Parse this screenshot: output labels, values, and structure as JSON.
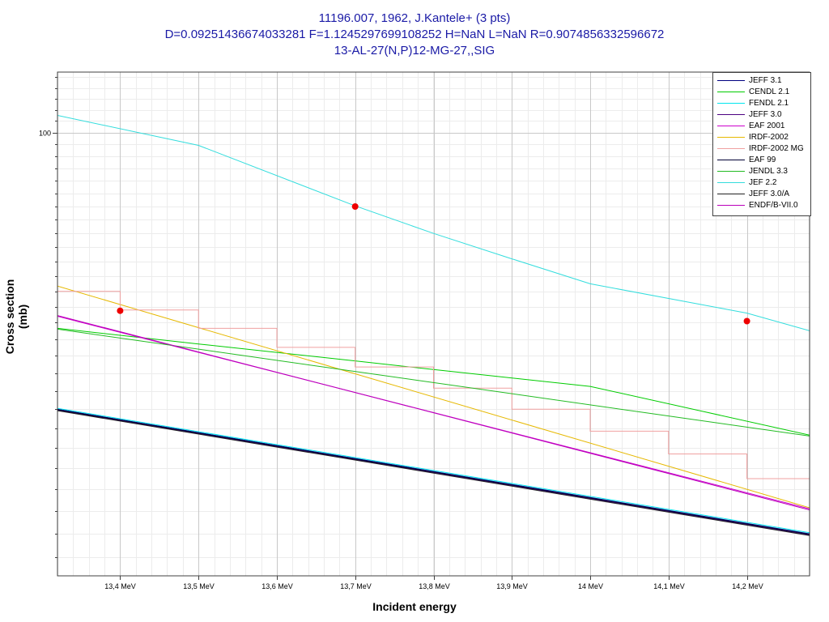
{
  "title": {
    "line1": "11196.007, 1962, J.Kantele+ (3 pts)",
    "line2": "D=0.09251436674033281 F=1.1245297699108252 H=NaN L=NaN R=0.9074856332596672",
    "line3": "13-AL-27(N,P)12-MG-27,,SIG"
  },
  "chart_data": {
    "type": "line",
    "xlabel": "Incident energy",
    "ylabel": "Cross section (mb)",
    "x_range": [
      13.32,
      14.28
    ],
    "y_range": [
      46.5,
      111
    ],
    "y_scale": "log",
    "x_ticks": [
      {
        "value": 13.4,
        "label": "13,4 MeV"
      },
      {
        "value": 13.5,
        "label": "13,5 MeV"
      },
      {
        "value": 13.6,
        "label": "13,6 MeV"
      },
      {
        "value": 13.7,
        "label": "13,7 MeV"
      },
      {
        "value": 13.8,
        "label": "13,8 MeV"
      },
      {
        "value": 13.9,
        "label": "13,9 MeV"
      },
      {
        "value": 14.0,
        "label": "14 MeV"
      },
      {
        "value": 14.1,
        "label": "14,1 MeV"
      },
      {
        "value": 14.2,
        "label": "14,2 MeV"
      }
    ],
    "y_ticks": [
      {
        "value": 100,
        "label": "100"
      }
    ],
    "grid": true,
    "legend_position": "top-right",
    "series": [
      {
        "name": "JEFF 3.1",
        "color": "#000080",
        "x": [
          13.32,
          14.28
        ],
        "y": [
          62.0,
          50.0
        ]
      },
      {
        "name": "CENDL 2.1",
        "color": "#00cc00",
        "x": [
          13.32,
          13.5,
          13.7,
          13.8,
          14.0,
          14.28
        ],
        "y": [
          71.3,
          69.4,
          67.4,
          66.4,
          64.5,
          59.3
        ]
      },
      {
        "name": "FENDL 2.1",
        "color": "#00e5ee",
        "x": [
          13.32,
          14.28
        ],
        "y": [
          62.1,
          50.1
        ]
      },
      {
        "name": "JEFF 3.0",
        "color": "#4b0082",
        "x": [
          13.32,
          14.28
        ],
        "y": [
          61.9,
          49.9
        ]
      },
      {
        "name": "EAF 2001",
        "color": "#cc00cc",
        "x": [
          13.32,
          14.28
        ],
        "y": [
          72.8,
          52.2
        ]
      },
      {
        "name": "IRDF-2002",
        "color": "#e6b800",
        "x": [
          13.32,
          14.28
        ],
        "y": [
          76.7,
          52.3
        ]
      },
      {
        "name": "IRDF-2002 MG",
        "color": "#f0a0a0",
        "x": [
          13.32,
          13.4,
          13.4,
          13.5,
          13.5,
          13.6,
          13.6,
          13.7,
          13.7,
          13.8,
          13.8,
          13.9,
          13.9,
          14.0,
          14.0,
          14.1,
          14.1,
          14.2,
          14.2,
          14.28
        ],
        "y": [
          76.0,
          76.0,
          73.6,
          73.6,
          71.3,
          71.3,
          69.0,
          69.0,
          66.7,
          66.7,
          64.3,
          64.3,
          62.0,
          62.0,
          59.7,
          59.7,
          57.4,
          57.4,
          55.0,
          55.0
        ]
      },
      {
        "name": "EAF 99",
        "color": "#000033",
        "x": [
          13.32,
          14.28
        ],
        "y": [
          61.95,
          49.95
        ]
      },
      {
        "name": "JENDL 3.3",
        "color": "#22bb22",
        "x": [
          13.32,
          14.28
        ],
        "y": [
          71.2,
          59.2
        ]
      },
      {
        "name": "JEF 2.2",
        "color": "#33dddd",
        "x": [
          13.32,
          13.5,
          13.7,
          13.8,
          13.9,
          14.0,
          14.2,
          14.28
        ],
        "y": [
          103.0,
          97.8,
          88.1,
          84.0,
          80.4,
          77.0,
          73.2,
          71.0
        ]
      },
      {
        "name": "JEFF 3.0/A",
        "color": "#222222",
        "x": [
          13.32,
          14.28
        ],
        "y": [
          61.85,
          49.85
        ]
      },
      {
        "name": "ENDF/B-VII.0",
        "color": "#bb00bb",
        "x": [
          13.32,
          14.28
        ],
        "y": [
          72.9,
          52.1
        ]
      }
    ],
    "points": [
      {
        "x": 13.4,
        "y": 73.5
      },
      {
        "x": 13.7,
        "y": 88.0
      },
      {
        "x": 14.2,
        "y": 72.2
      }
    ],
    "point_color": "#ee0000"
  }
}
